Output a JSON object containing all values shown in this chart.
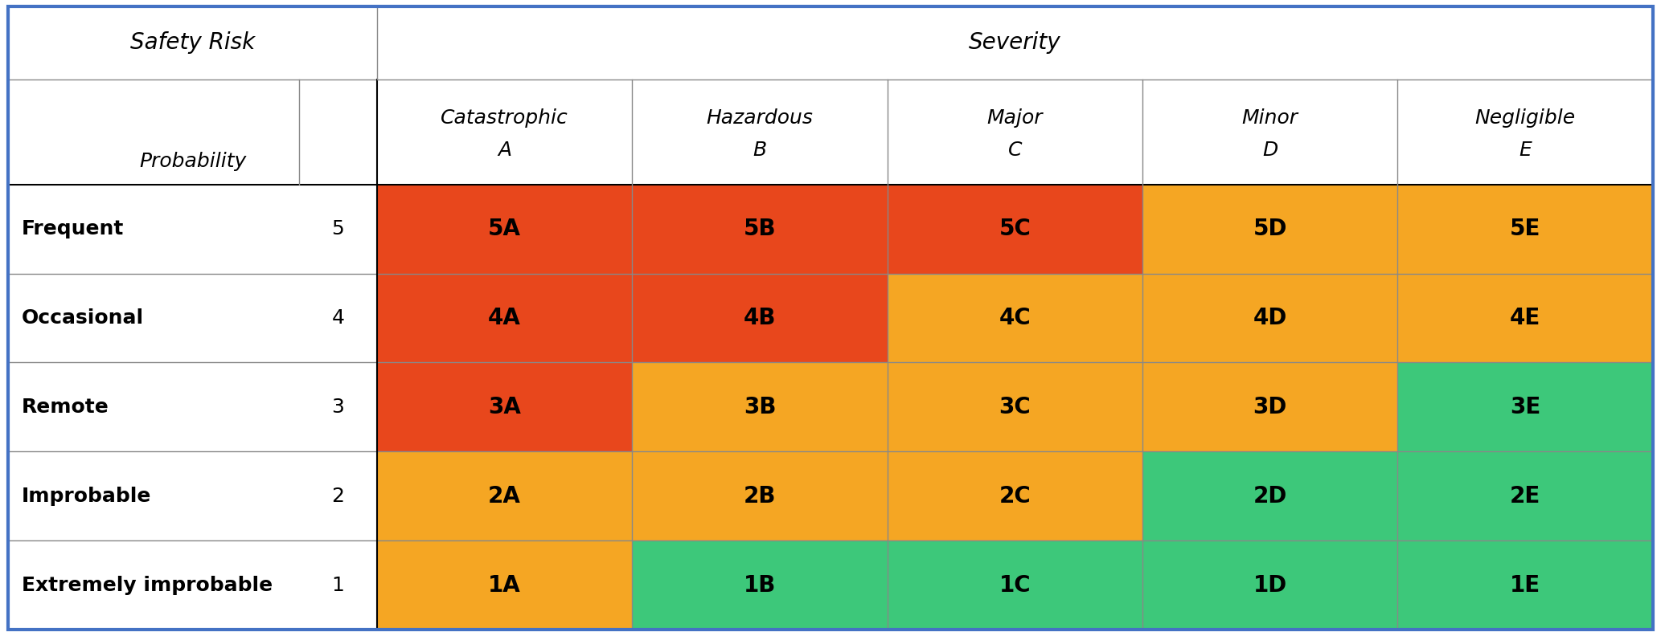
{
  "title_left": "Safety Risk",
  "title_right": "Severity",
  "col_headers_line1": [
    "Catastrophic",
    "Hazardous",
    "Major",
    "Minor",
    "Negligible"
  ],
  "col_headers_line2": [
    "A",
    "B",
    "C",
    "D",
    "E"
  ],
  "row_headers": [
    "Frequent",
    "Occasional",
    "Remote",
    "Improbable",
    "Extremely improbable"
  ],
  "row_numbers": [
    "5",
    "4",
    "3",
    "2",
    "1"
  ],
  "prob_label": "Probability",
  "cell_labels": [
    [
      "5A",
      "5B",
      "5C",
      "5D",
      "5E"
    ],
    [
      "4A",
      "4B",
      "4C",
      "4D",
      "4E"
    ],
    [
      "3A",
      "3B",
      "3C",
      "3D",
      "3E"
    ],
    [
      "2A",
      "2B",
      "2C",
      "2D",
      "2E"
    ],
    [
      "1A",
      "1B",
      "1C",
      "1D",
      "1E"
    ]
  ],
  "cell_colors": [
    [
      "#E8471C",
      "#E8471C",
      "#E8471C",
      "#F5A623",
      "#F5A623"
    ],
    [
      "#E8471C",
      "#E8471C",
      "#F5A623",
      "#F5A623",
      "#F5A623"
    ],
    [
      "#E8471C",
      "#F5A623",
      "#F5A623",
      "#F5A623",
      "#3DC87A"
    ],
    [
      "#F5A623",
      "#F5A623",
      "#F5A623",
      "#3DC87A",
      "#3DC87A"
    ],
    [
      "#F5A623",
      "#3DC87A",
      "#3DC87A",
      "#3DC87A",
      "#3DC87A"
    ]
  ],
  "background_color": "#FFFFFF",
  "text_color": "#000000",
  "cell_text_color": "#000000",
  "outer_border_color": "#4472C4",
  "inner_line_color": "#888888",
  "figsize": [
    20.66,
    7.92
  ],
  "dpi": 100,
  "title_fontsize": 20,
  "header_fontsize": 18,
  "label_fontsize": 18,
  "cell_fontsize": 20,
  "num_fontsize": 18
}
